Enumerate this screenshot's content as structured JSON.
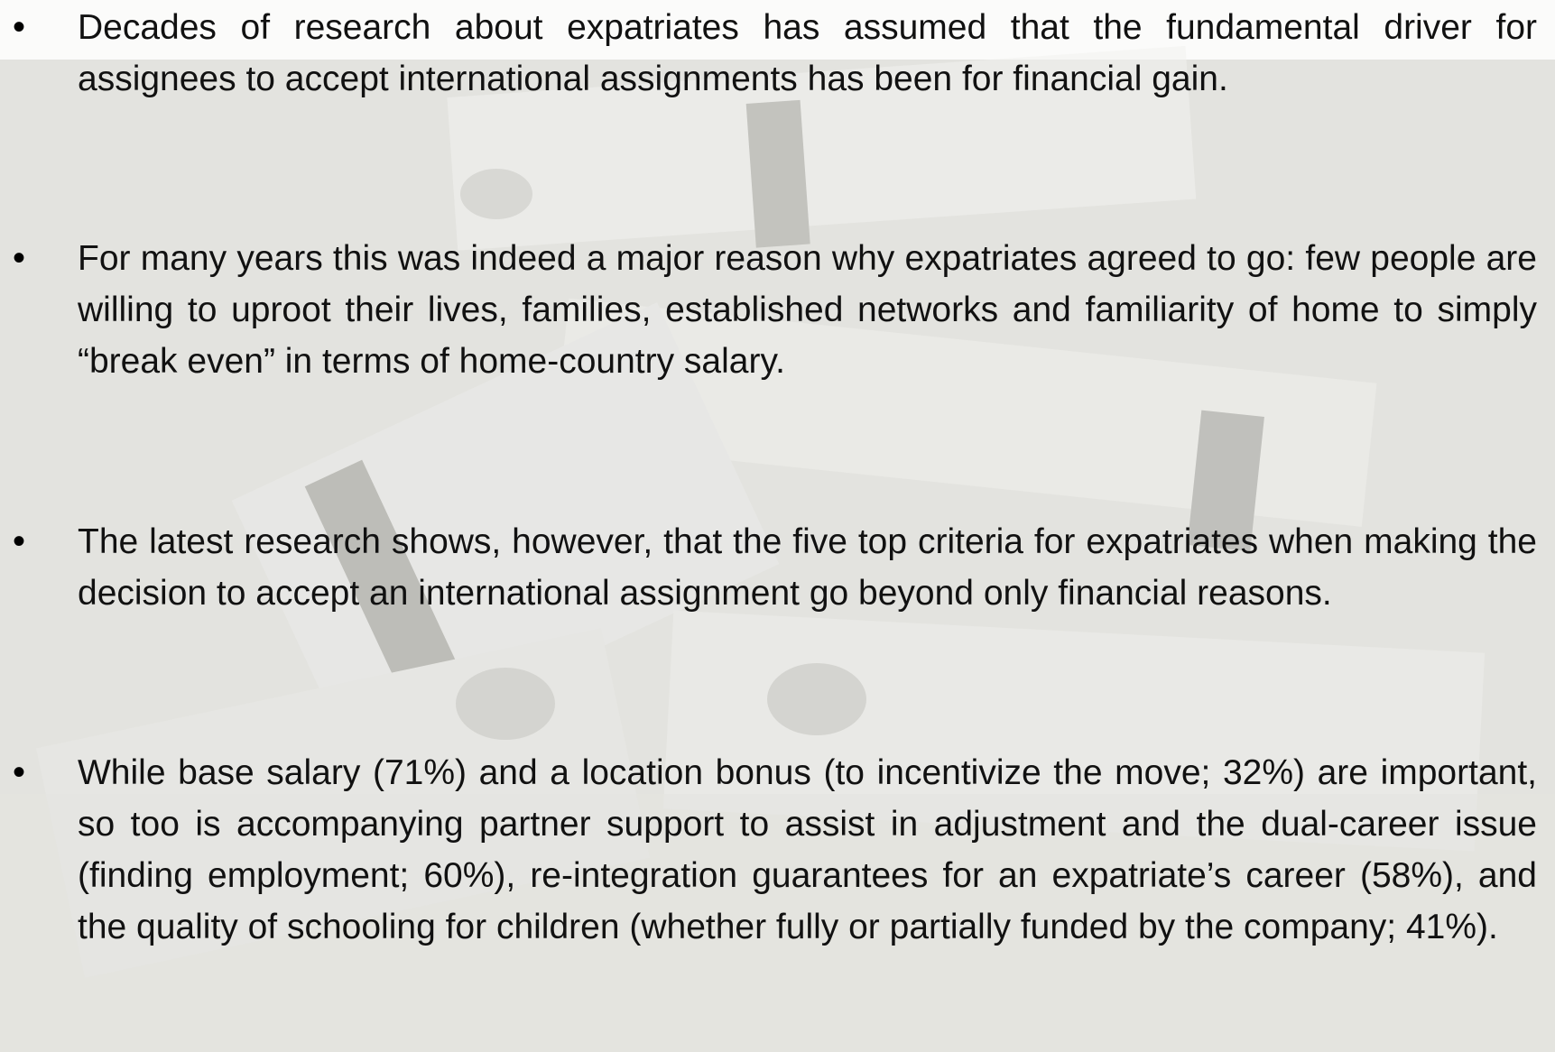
{
  "bullets": [
    "Decades of research about expatriates has assumed that the fundamental driver for assignees to accept international assignments has been for financial gain.",
    "For many years this was indeed a major reason why expatriates agreed to go: few people are willing to uproot their lives, families, established networks and familiarity of home to simply “break even” in terms of home-country salary.",
    "The latest research shows, however, that the five top criteria for expatriates when making the decision to accept an international assignment go beyond only financial reasons.",
    "While base salary (71%) and a location bonus (to incentivize the move; 32%) are important, so too is accompanying partner support to assist in adjustment and the dual-career issue (finding employment; 60%), re-integration guarantees for an expatriate’s career (58%), and the quality of schooling for children (whether fully or partially funded by the company; 41%)."
  ]
}
